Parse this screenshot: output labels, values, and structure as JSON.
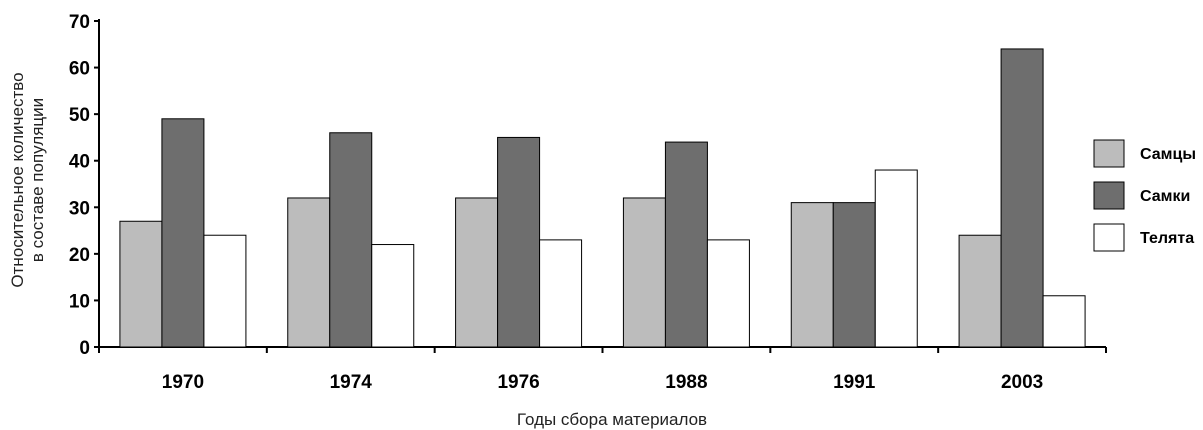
{
  "chart_data": {
    "type": "bar",
    "title": "",
    "xlabel": "Годы сбора материалов",
    "ylabel": [
      "Относительное количество",
      "в составе популяции"
    ],
    "ylim": [
      0,
      70
    ],
    "yticks": [
      0,
      10,
      20,
      30,
      40,
      50,
      60,
      70
    ],
    "categories": [
      "1970",
      "1974",
      "1976",
      "1988",
      "1991",
      "2003"
    ],
    "series": [
      {
        "name": "Самцы",
        "color": "#bcbcbc",
        "values": [
          27,
          32,
          32,
          32,
          31,
          24
        ]
      },
      {
        "name": "Самки",
        "color": "#6e6e6e",
        "values": [
          49,
          46,
          45,
          44,
          31,
          64
        ]
      },
      {
        "name": "Телята",
        "color": "#ffffff",
        "values": [
          24,
          22,
          23,
          23,
          38,
          11
        ]
      }
    ],
    "legend_position": "right",
    "grid": false
  }
}
